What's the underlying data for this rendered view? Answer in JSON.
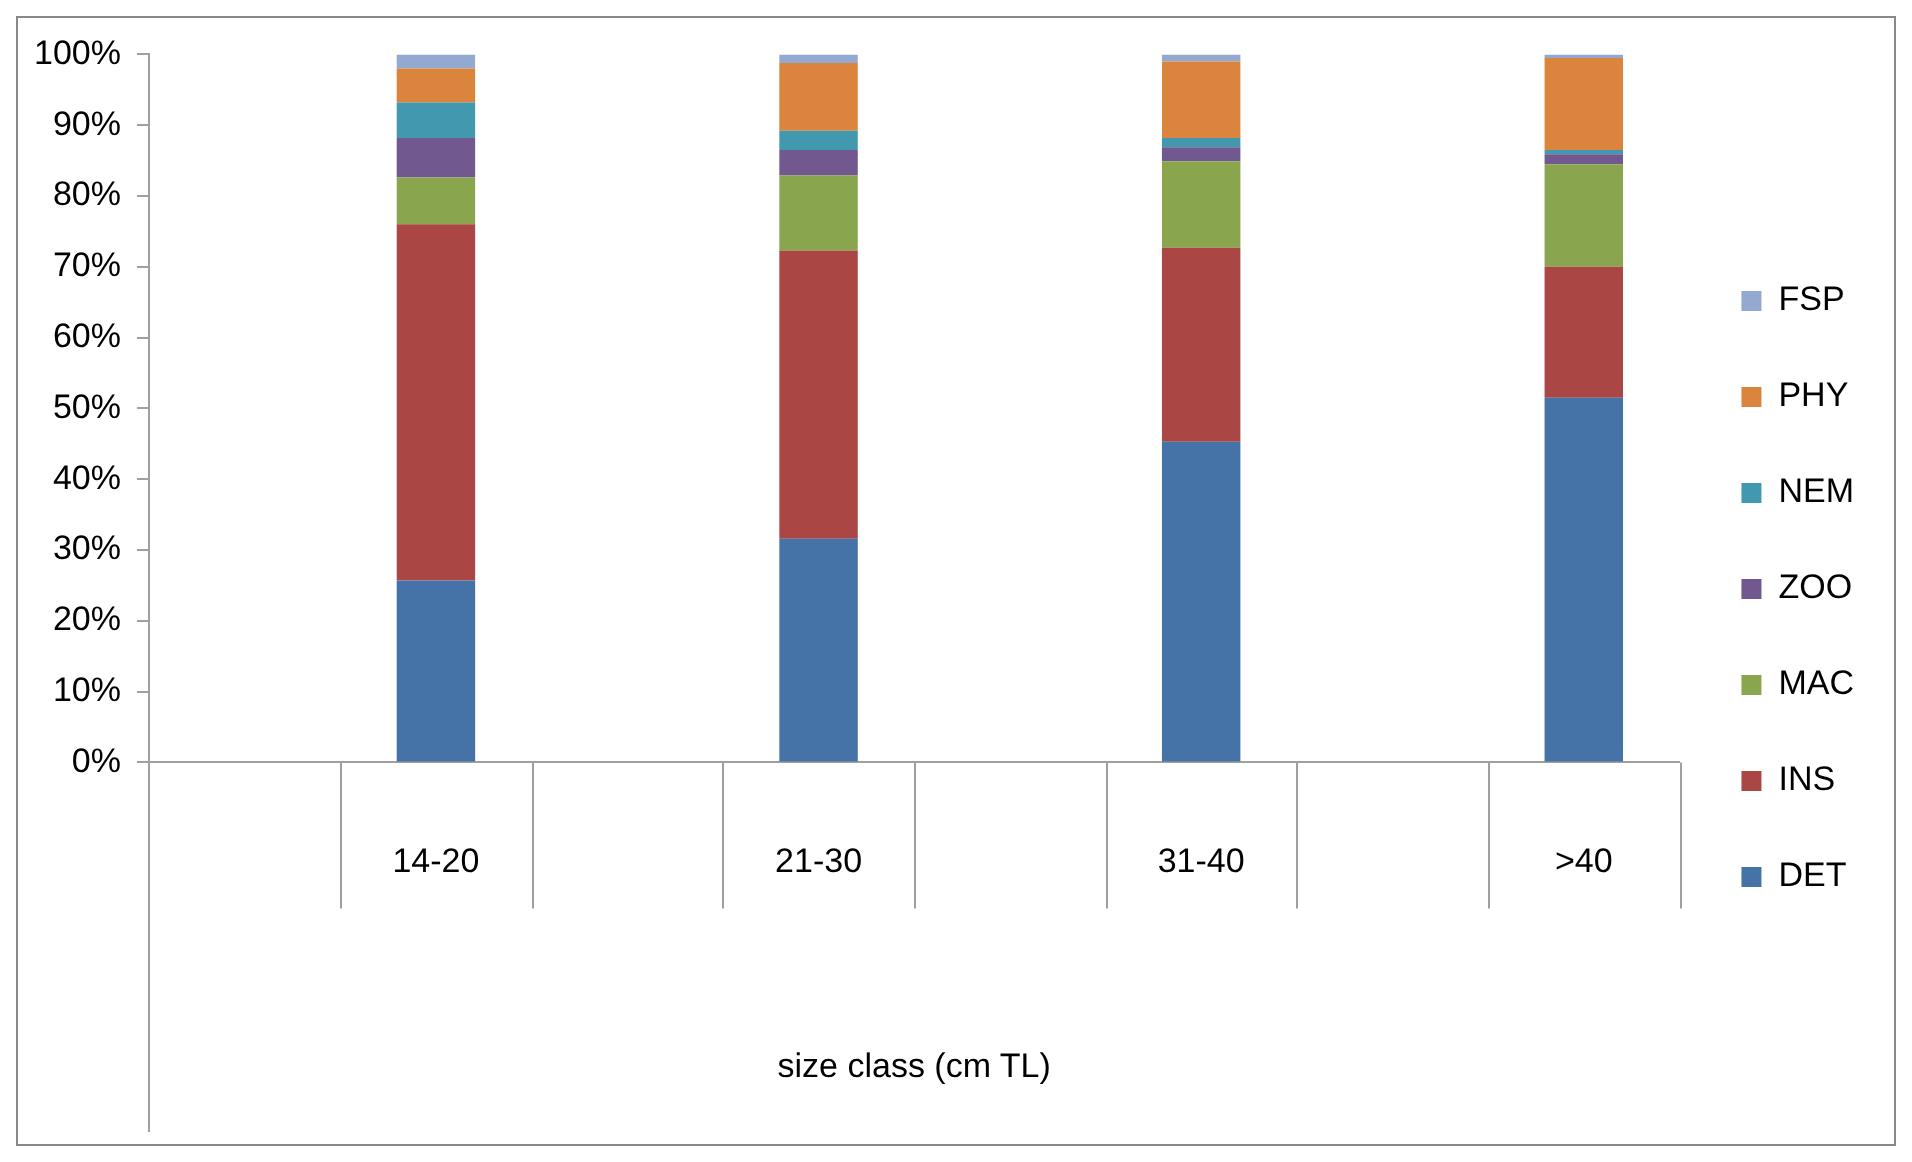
{
  "chart_data": {
    "type": "bar",
    "stacked": true,
    "xlabel": "size class (cm TL)",
    "categories": [
      null,
      "14-20",
      null,
      "21-30",
      null,
      "31-40",
      null,
      ">40"
    ],
    "series": [
      {
        "name": "DET",
        "color": "#4572a7",
        "values": [
          null,
          25.7,
          null,
          31.6,
          null,
          45.3,
          null,
          51.5
        ]
      },
      {
        "name": "INS",
        "color": "#aa4643",
        "values": [
          null,
          50.3,
          null,
          40.7,
          null,
          27.4,
          null,
          18.5
        ]
      },
      {
        "name": "MAC",
        "color": "#89a54e",
        "values": [
          null,
          6.6,
          null,
          10.6,
          null,
          12.2,
          null,
          14.5
        ]
      },
      {
        "name": "ZOO",
        "color": "#71588f",
        "values": [
          null,
          5.6,
          null,
          3.6,
          null,
          2.0,
          null,
          1.4
        ]
      },
      {
        "name": "NEM",
        "color": "#4198af",
        "values": [
          null,
          5.0,
          null,
          2.7,
          null,
          1.3,
          null,
          0.6
        ]
      },
      {
        "name": "PHY",
        "color": "#db843d",
        "values": [
          null,
          4.8,
          null,
          9.6,
          null,
          10.8,
          null,
          13.0
        ]
      },
      {
        "name": "FSP",
        "color": "#93a9cf",
        "values": [
          null,
          2.0,
          null,
          1.2,
          null,
          1.0,
          null,
          0.5
        ]
      }
    ],
    "ylim": [
      0,
      100
    ],
    "yticks": [
      {
        "value": 0,
        "label": "0%"
      },
      {
        "value": 10,
        "label": "10%"
      },
      {
        "value": 20,
        "label": "20%"
      },
      {
        "value": 30,
        "label": "30%"
      },
      {
        "value": 40,
        "label": "40%"
      },
      {
        "value": 50,
        "label": "50%"
      },
      {
        "value": 60,
        "label": "60%"
      },
      {
        "value": 70,
        "label": "70%"
      },
      {
        "value": 80,
        "label": "80%"
      },
      {
        "value": 90,
        "label": "90%"
      },
      {
        "value": 100,
        "label": "100%"
      }
    ],
    "grid": false,
    "legend": "right"
  }
}
